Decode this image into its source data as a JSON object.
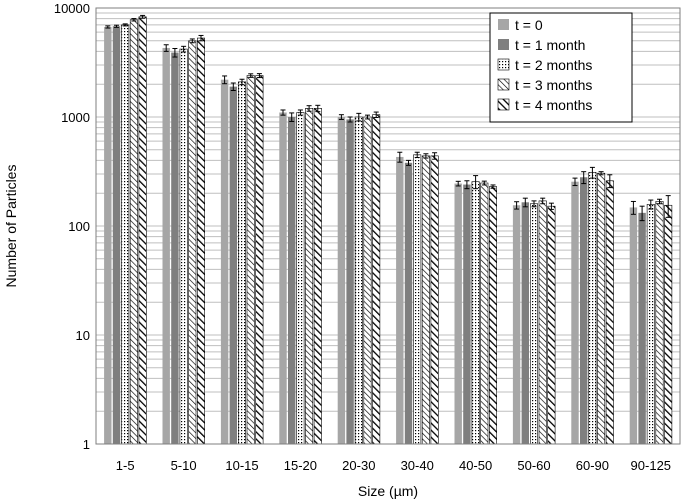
{
  "chart_data": {
    "type": "bar",
    "xlabel": "Size (µm)",
    "ylabel": "Number of Particles",
    "yscale": "log",
    "ylim": [
      1,
      10000
    ],
    "yticks": [
      "1",
      "10",
      "100",
      "1000",
      "10000"
    ],
    "grid": true,
    "legend_position": "top-right",
    "categories": [
      "1-5",
      "5-10",
      "10-15",
      "15-20",
      "20-30",
      "30-40",
      "40-50",
      "50-60",
      "60-90",
      "90-125"
    ],
    "series": [
      {
        "name": "t = 0",
        "pattern": "solid-light",
        "color": "#a6a6a6",
        "values": [
          6700,
          4300,
          2200,
          1100,
          1000,
          430,
          245,
          155,
          255,
          148
        ],
        "errors": [
          150,
          300,
          180,
          60,
          50,
          45,
          12,
          12,
          20,
          20
        ]
      },
      {
        "name": "t = 1 month",
        "pattern": "solid-dark",
        "color": "#7f7f7f",
        "values": [
          6800,
          3900,
          1900,
          1000,
          950,
          380,
          240,
          165,
          280,
          132
        ],
        "errors": [
          150,
          350,
          150,
          90,
          50,
          20,
          20,
          15,
          35,
          20
        ]
      },
      {
        "name": "t =  2 months",
        "pattern": "dotted",
        "color": "#ffffff",
        "values": [
          7000,
          4200,
          2100,
          1100,
          1000,
          450,
          255,
          160,
          310,
          158
        ],
        "errors": [
          150,
          250,
          120,
          60,
          80,
          25,
          35,
          10,
          35,
          15
        ]
      },
      {
        "name": "t = 3 months",
        "pattern": "hatch-thin",
        "color": "#ffffff",
        "values": [
          7800,
          5000,
          2400,
          1200,
          1000,
          440,
          248,
          170,
          305,
          168
        ],
        "errors": [
          200,
          200,
          90,
          70,
          40,
          20,
          10,
          10,
          10,
          8
        ]
      },
      {
        "name": "t = 4 months",
        "pattern": "hatch-thick",
        "color": "#ffffff",
        "values": [
          8300,
          5300,
          2400,
          1200,
          1050,
          440,
          230,
          152,
          260,
          155
        ],
        "errors": [
          250,
          300,
          100,
          80,
          60,
          30,
          8,
          10,
          35,
          35
        ]
      }
    ]
  }
}
